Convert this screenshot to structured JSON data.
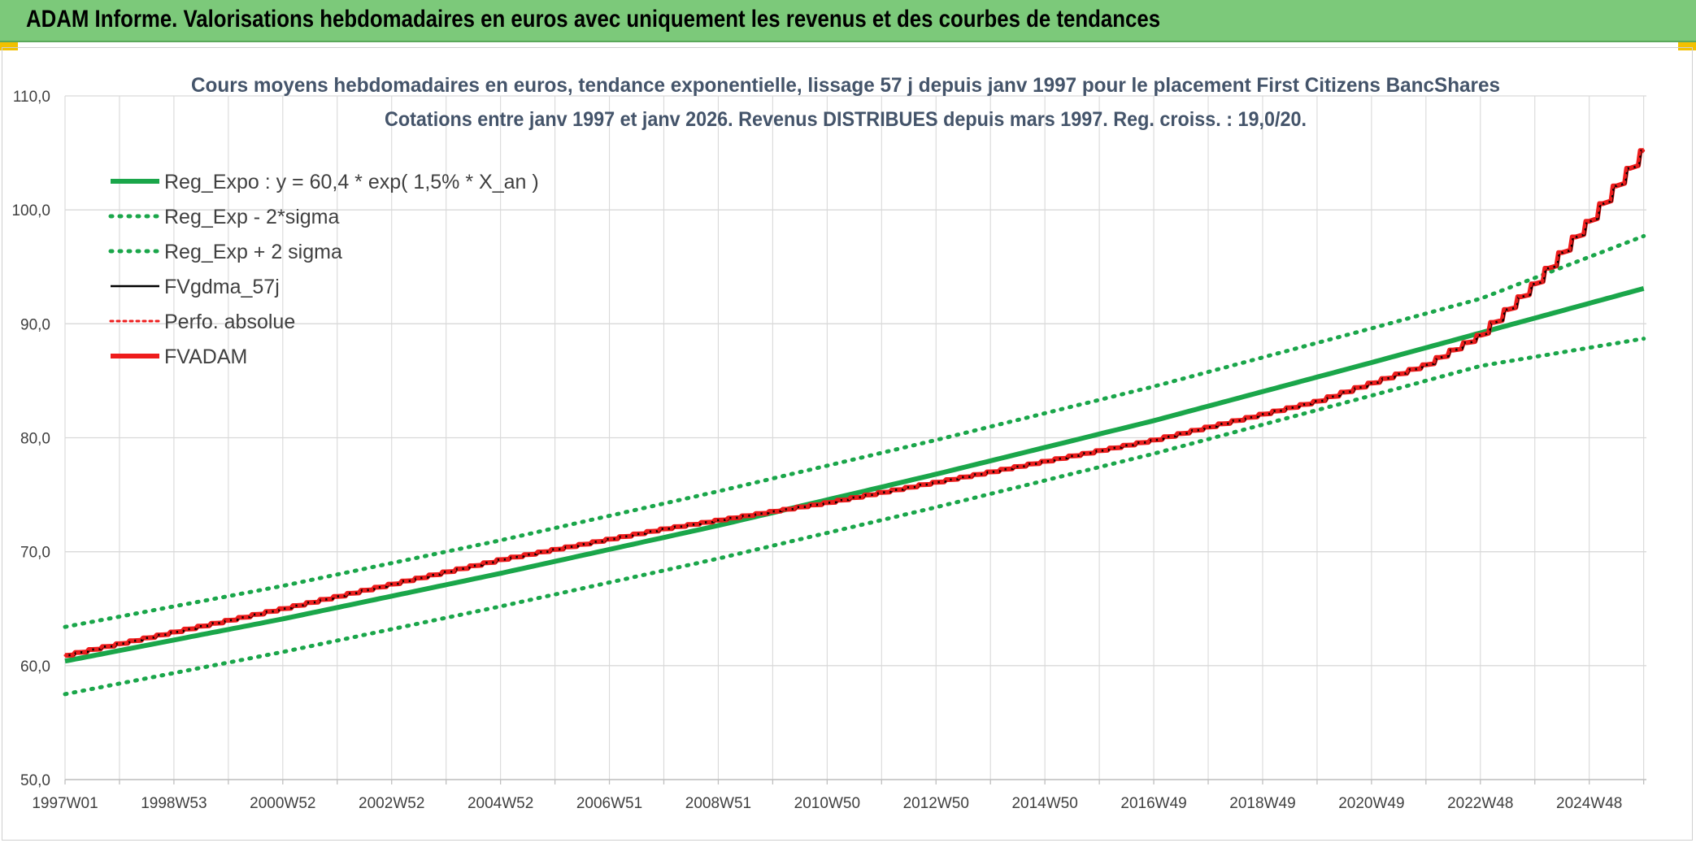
{
  "header": {
    "title": "ADAM Informe. Valorisations hebdomadaires en euros avec uniquement les revenus et des courbes de tendances"
  },
  "colors": {
    "banner": "#7cc97a",
    "green": "#1aa64a",
    "red": "#ee1c1c",
    "black": "#000000",
    "grid": "#d9d9d9"
  },
  "chart_data": {
    "type": "line",
    "title": "Cours moyens hebdomadaires en euros, tendance exponentielle, lissage 57 j depuis janv 1997 pour le placement First Citizens BancShares",
    "subtitle": "Cotations entre janv 1997 et janv 2026. Revenus DISTRIBUES depuis mars 1997. Reg. croiss. : 19,0/20.",
    "x_tick_labels": [
      "1997W01",
      "1998W53",
      "2000W52",
      "2002W52",
      "2004W52",
      "2006W51",
      "2008W51",
      "2010W50",
      "2012W50",
      "2014W50",
      "2016W49",
      "2018W49",
      "2020W49",
      "2022W48",
      "2024W48"
    ],
    "y_tick_labels": [
      "50,0",
      "60,0",
      "70,0",
      "80,0",
      "90,0",
      "100,0",
      "110,0"
    ],
    "xlim": [
      1997.0,
      2026.05
    ],
    "ylim": [
      50,
      110
    ],
    "grid": true,
    "legend_position": "top-left",
    "series": [
      {
        "name": "Reg_Expo : y = 60,4 * exp( 1,5% *  X_an )",
        "style": "solid-thick",
        "color": "#1aa64a",
        "x": [
          1997.0,
          2001.0,
          2005.0,
          2009.0,
          2013.0,
          2017.0,
          2021.0,
          2023.0,
          2026.0
        ],
        "y": [
          60.4,
          64.1,
          68.1,
          72.3,
          76.8,
          81.5,
          86.6,
          89.2,
          93.1
        ]
      },
      {
        "name": "Reg_Exp - 2*sigma",
        "style": "dotted",
        "color": "#1aa64a",
        "x": [
          1997.0,
          2001.0,
          2005.0,
          2009.0,
          2013.0,
          2017.0,
          2021.0,
          2023.0,
          2026.0
        ],
        "y": [
          57.5,
          61.2,
          65.2,
          69.4,
          73.9,
          78.6,
          83.7,
          86.3,
          88.7
        ]
      },
      {
        "name": "Reg_Exp + 2 sigma",
        "style": "dotted",
        "color": "#1aa64a",
        "x": [
          1997.0,
          2001.0,
          2005.0,
          2009.0,
          2013.0,
          2017.0,
          2021.0,
          2023.0,
          2026.0
        ],
        "y": [
          63.4,
          67.0,
          71.0,
          75.3,
          79.8,
          84.5,
          89.6,
          92.2,
          97.7
        ]
      },
      {
        "name": "FVgdma_57j",
        "style": "solid",
        "color": "#000000",
        "x": [
          1997.0,
          2001.0,
          2005.0,
          2008.0,
          2011.0,
          2014.0,
          2017.0,
          2020.0,
          2022.0,
          2023.0,
          2024.0,
          2025.0,
          2026.0
        ],
        "y": [
          60.9,
          65.0,
          69.3,
          72.0,
          74.3,
          77.0,
          79.8,
          83.2,
          86.4,
          89.0,
          93.5,
          99.0,
          105.2
        ]
      },
      {
        "name": "Perfo. absolue",
        "style": "dotted",
        "color": "#ee1c1c",
        "x": [
          1997.0,
          2001.0,
          2005.0,
          2008.0,
          2011.0,
          2014.0,
          2017.0,
          2020.0,
          2022.0,
          2023.0,
          2024.0,
          2025.0,
          2026.0
        ],
        "y": [
          60.9,
          65.0,
          69.3,
          72.0,
          74.3,
          77.0,
          79.8,
          83.2,
          86.4,
          89.0,
          93.5,
          99.0,
          105.2
        ]
      },
      {
        "name": "FVADAM",
        "style": "solid-thick",
        "color": "#ee1c1c",
        "x": [
          1997.0,
          2001.0,
          2005.0,
          2008.0,
          2011.0,
          2014.0,
          2017.0,
          2020.0,
          2022.0,
          2023.0,
          2024.0,
          2025.0,
          2026.0
        ],
        "y": [
          60.9,
          65.0,
          69.3,
          72.0,
          74.3,
          77.0,
          79.8,
          83.2,
          86.4,
          89.0,
          93.5,
          99.0,
          105.2
        ]
      }
    ]
  }
}
